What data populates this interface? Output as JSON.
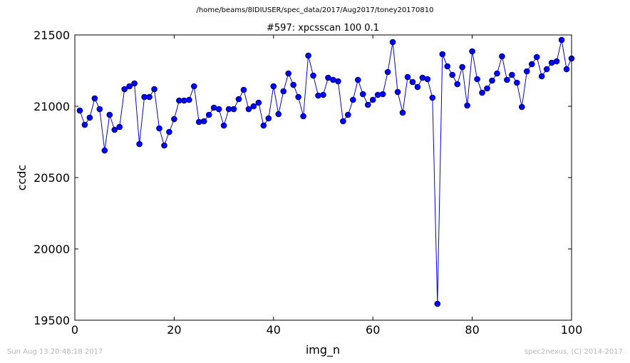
{
  "figure": {
    "suptitle": "/home/beams/8IDIUSER/spec_data/2017/Aug2017/toney20170810",
    "footer_left": "Sun Aug 13 20:48:18 2017",
    "footer_right": "spec2nexus, (C) 2014-2017"
  },
  "chart_data": {
    "type": "line",
    "title": "#597: xpcsscan 100 0.1",
    "xlabel": "img_n",
    "ylabel": "ccdc",
    "xlim": [
      0,
      100
    ],
    "ylim": [
      19500,
      21500
    ],
    "xticks": [
      0,
      20,
      40,
      60,
      80,
      100
    ],
    "yticks": [
      19500,
      20000,
      20500,
      21000,
      21500
    ],
    "grid": false,
    "marker": "circle",
    "color": "#0000ff",
    "series": [
      {
        "x": [
          1,
          2,
          3,
          4,
          5,
          6,
          7,
          8,
          9,
          10,
          11,
          12,
          13,
          14,
          15,
          16,
          17,
          18,
          19,
          20,
          21,
          22,
          23,
          24,
          25,
          26,
          27,
          28,
          29,
          30,
          31,
          32,
          33,
          34,
          35,
          36,
          37,
          38,
          39,
          40,
          41,
          42,
          43,
          44,
          45,
          46,
          47,
          48,
          49,
          50,
          51,
          52,
          53,
          54,
          55,
          56,
          57,
          58,
          59,
          60,
          61,
          62,
          63,
          64,
          65,
          66,
          67,
          68,
          69,
          70,
          71,
          72,
          73,
          74,
          75,
          76,
          77,
          78,
          79,
          80,
          81,
          82,
          83,
          84,
          85,
          86,
          87,
          88,
          89,
          90,
          91,
          92,
          93,
          94,
          95,
          96,
          97,
          98,
          99,
          100
        ],
        "y": [
          20970,
          20870,
          20920,
          21055,
          20980,
          20690,
          20940,
          20835,
          20855,
          21120,
          21140,
          21160,
          20735,
          21065,
          21065,
          21120,
          20845,
          20725,
          20820,
          20910,
          21040,
          21040,
          21045,
          21140,
          20890,
          20895,
          20940,
          20990,
          20980,
          20865,
          20980,
          20980,
          21050,
          21115,
          20980,
          21000,
          21025,
          20865,
          20915,
          21140,
          20945,
          21105,
          21230,
          21150,
          21065,
          20930,
          21355,
          21215,
          21075,
          21080,
          21200,
          21185,
          21175,
          20895,
          20940,
          21045,
          21185,
          21085,
          21010,
          21045,
          21080,
          21085,
          21240,
          21450,
          21100,
          20955,
          21205,
          21170,
          21135,
          21200,
          21190,
          21060,
          19615,
          21365,
          21280,
          21220,
          21155,
          21275,
          21005,
          21385,
          21190,
          21095,
          21125,
          21180,
          21230,
          21350,
          21185,
          21220,
          21165,
          20995,
          21245,
          21295,
          21345,
          21210,
          21260,
          21305,
          21315,
          21465,
          21260,
          21335
        ]
      }
    ]
  }
}
